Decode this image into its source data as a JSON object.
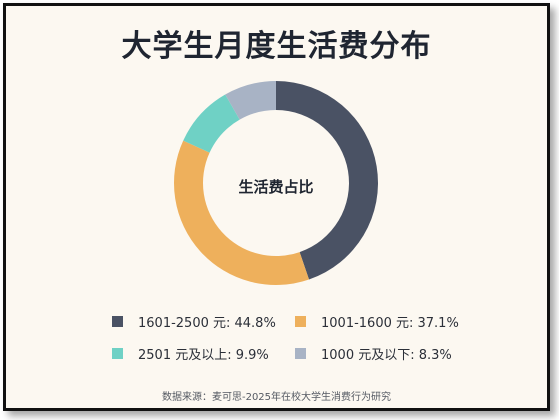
{
  "chart_data": {
    "type": "pie",
    "title": "大学生月度生活费分布",
    "center_label": "生活费占比",
    "unit": "%",
    "categories": [
      "1601-2500 元",
      "1001-1600 元",
      "2501 元及以上",
      "1000 元及以下"
    ],
    "values": [
      44.8,
      37.1,
      9.9,
      8.3
    ],
    "legend_labels": [
      "1601-2500 元: 44.8%",
      "1001-1600 元: 37.1%",
      "2501 元及以上: 9.9%",
      "1000 元及以下: 8.3%"
    ],
    "colors": [
      "#4a5264",
      "#eeb05c",
      "#6fd1c5",
      "#a8b3c5"
    ],
    "legend_position": "bottom",
    "donut": true,
    "source": "数据来源：麦可思-2025年在校大学生消费行为研究"
  }
}
